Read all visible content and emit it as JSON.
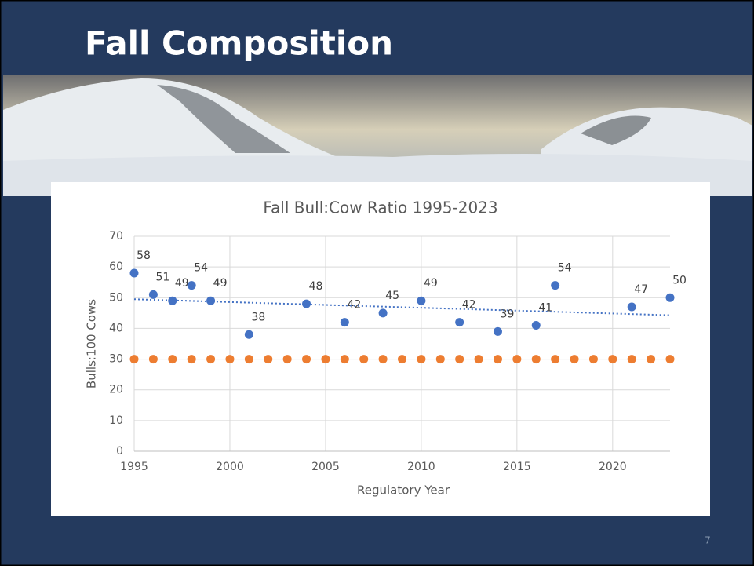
{
  "slide": {
    "title": "Fall Composition",
    "page_number": "7"
  },
  "chart_data": {
    "type": "scatter",
    "title": "Fall Bull:Cow Ratio 1995-2023",
    "x_label": "Regulatory Year",
    "y_label": "Bulls:100 Cows",
    "xlim": [
      1995,
      2023
    ],
    "xticks": [
      1995,
      2000,
      2005,
      2010,
      2015,
      2020
    ],
    "ylim": [
      0,
      70
    ],
    "yticks": [
      0,
      10,
      20,
      30,
      40,
      50,
      60,
      70
    ],
    "grid": true,
    "series": [
      {
        "color": "#4472c4",
        "data_labels": true,
        "x": [
          1995,
          1996,
          1997,
          1998,
          1999,
          2001,
          2004,
          2006,
          2008,
          2010,
          2012,
          2014,
          2016,
          2017,
          2021,
          2023
        ],
        "values": [
          58,
          51,
          49,
          54,
          49,
          38,
          48,
          42,
          45,
          49,
          42,
          39,
          41,
          54,
          47,
          50
        ]
      },
      {
        "color": "#ed7d31",
        "data_labels": false,
        "x": [
          1995,
          1996,
          1997,
          1998,
          1999,
          2000,
          2001,
          2002,
          2003,
          2004,
          2005,
          2006,
          2007,
          2008,
          2009,
          2010,
          2011,
          2012,
          2013,
          2014,
          2015,
          2016,
          2017,
          2018,
          2019,
          2020,
          2021,
          2022,
          2023
        ],
        "values": [
          30,
          30,
          30,
          30,
          30,
          30,
          30,
          30,
          30,
          30,
          30,
          30,
          30,
          30,
          30,
          30,
          30,
          30,
          30,
          30,
          30,
          30,
          30,
          30,
          30,
          30,
          30,
          30,
          30
        ]
      }
    ],
    "trendline": {
      "color": "#4472c4",
      "x": [
        1995,
        2023
      ],
      "values": [
        49.5,
        44.3
      ]
    }
  }
}
